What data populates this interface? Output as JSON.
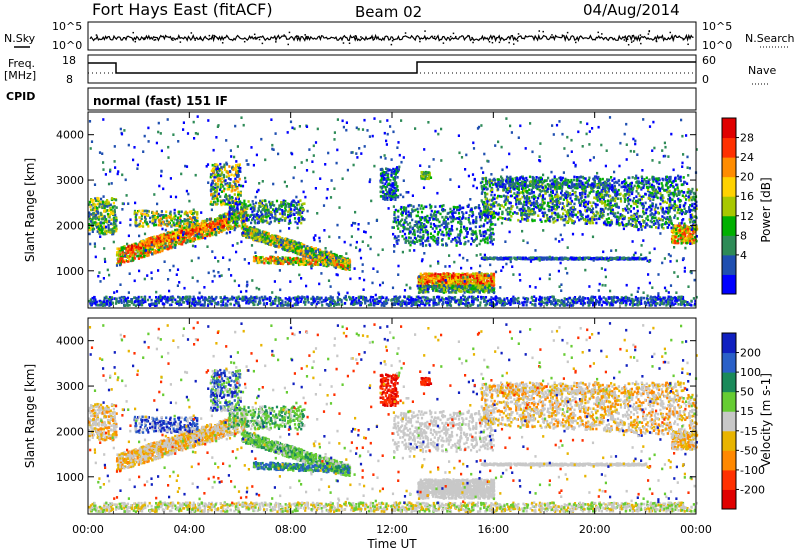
{
  "header": {
    "title": "Fort Hays East (fitACF)",
    "beam": "Beam 02",
    "date": "04/Aug/2014"
  },
  "top_strip": {
    "nsky_label": "N.Sky",
    "nsearch_label": "N.Search",
    "nsky_ticks": [
      "10^5",
      "10^0"
    ],
    "nsearch_ticks": [
      "10^5",
      "10^0"
    ],
    "freq_label": "Freq.",
    "freq_unit": "[MHz]",
    "freq_ticks": [
      "18",
      "8"
    ],
    "nave_label": "Nave",
    "nave_ticks": [
      "60",
      "0"
    ],
    "cpid_label": "CPID",
    "cpid_text": "normal (fast) 151 IF"
  },
  "chart_data": [
    {
      "type": "heatmap",
      "panel": "power",
      "ylabel": "Slant Range [km]",
      "xlim": [
        0,
        24
      ],
      "ylim": [
        180,
        4500
      ],
      "y_ticks": [
        1000,
        2000,
        3000,
        4000
      ],
      "colorbar": {
        "label": "Power [dB]",
        "ticks": [
          "4",
          "8",
          "12",
          "16",
          "20",
          "24",
          "28"
        ],
        "colors": [
          "#0000ff",
          "#1f4fb0",
          "#2e8b57",
          "#00b000",
          "#a8c800",
          "#ffd200",
          "#ff8c00",
          "#ff3000",
          "#e00000"
        ]
      }
    },
    {
      "type": "heatmap",
      "panel": "velocity",
      "ylabel": "Slant Range [km]",
      "xlabel": "Time UT",
      "xlim": [
        0,
        24
      ],
      "ylim": [
        180,
        4500
      ],
      "y_ticks": [
        1000,
        2000,
        3000,
        4000
      ],
      "x_ticks": [
        "00:00",
        "04:00",
        "08:00",
        "12:00",
        "16:00",
        "20:00",
        "00:00"
      ],
      "colorbar": {
        "label": "Velocity [m s-1]",
        "ticks": [
          "200",
          "100",
          "50",
          "15",
          "-15",
          "-50",
          "-100",
          "-200"
        ],
        "colors": [
          "#1020c0",
          "#2a60c8",
          "#1a8a5a",
          "#66cc33",
          "#c8c8c8",
          "#e8b400",
          "#ff8800",
          "#ff3000",
          "#e00000"
        ]
      }
    }
  ],
  "colors": {
    "gray": "#c8c8c8"
  }
}
